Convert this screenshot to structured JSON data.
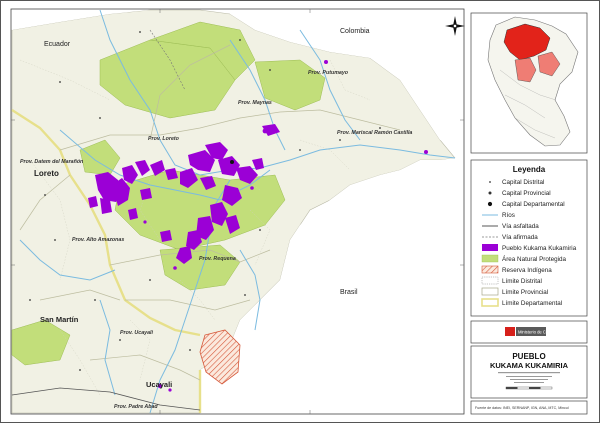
{
  "map": {
    "title_line1": "PUEBLO",
    "title_line2": "KUKAMA KUKAMIRIA",
    "institution": "Ministerio de Cultura",
    "countries": [
      "Ecuador",
      "Colombia",
      "Brasil"
    ],
    "regions": [
      "Loreto",
      "San Martín",
      "Ucayali"
    ],
    "provinces": [
      "Prov. Putumayo",
      "Prov. Maynas",
      "Prov. Loreto",
      "Prov. Mariscal Ramón Castilla",
      "Prov. Datem del Marañón",
      "Prov. Alto Amazonas",
      "Prov. Requena",
      "Prov. Ucayali",
      "Prov. Padre Abad"
    ],
    "footer_note": "Fuente de datos: INEI, SERNANP, IGN, ANA, MTC, Mincul"
  },
  "legend": {
    "title": "Leyenda",
    "items": [
      {
        "label": "Capital Distrital",
        "symbol": "dot-small"
      },
      {
        "label": "Capital Provincial",
        "symbol": "dot-medium"
      },
      {
        "label": "Capital Departamental",
        "symbol": "dot-large"
      },
      {
        "label": "Ríos",
        "symbol": "line-blue"
      },
      {
        "label": "Vía asfaltada",
        "symbol": "line-dark"
      },
      {
        "label": "Vía afirmada",
        "symbol": "line-dashed"
      },
      {
        "label": "Pueblo Kukama Kukamiria",
        "symbol": "fill-purple"
      },
      {
        "label": "Área Natural Protegida",
        "symbol": "fill-green"
      },
      {
        "label": "Reserva Indígena",
        "symbol": "fill-hatch"
      },
      {
        "label": "Límite Distrital",
        "symbol": "line-dotted"
      },
      {
        "label": "Límite Provincial",
        "symbol": "line-provincial"
      },
      {
        "label": "Límite Departamental",
        "symbol": "line-departmental"
      }
    ]
  },
  "colors": {
    "pueblo": "#9b00d6",
    "protected_area": "#c2de7a",
    "land": "#f1f1e4",
    "river": "#7bbbe0",
    "reserve_border": "#d65a3c",
    "departmental": "#e7e08b"
  }
}
